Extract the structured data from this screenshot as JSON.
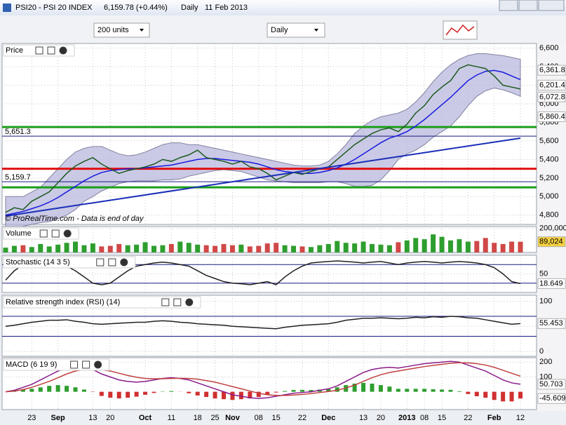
{
  "window": {
    "title": "PSI20 - PSI 20 INDEX",
    "quote": "6,159.78 (+0.44%)",
    "period": "Daily",
    "date": "11 Feb 2013"
  },
  "toolbar": {
    "units": "200 units",
    "timeframe": "Daily"
  },
  "chart_data": [
    {
      "type": "line",
      "title": "Price",
      "note": "© ProRealTime.com - Data is end of day",
      "xlim": [
        0,
        59
      ],
      "xticks": [
        {
          "value": 3,
          "label": "23"
        },
        {
          "value": 6,
          "label": "Sep"
        },
        {
          "value": 10,
          "label": "13"
        },
        {
          "value": 12,
          "label": "20"
        },
        {
          "value": 16,
          "label": "Oct"
        },
        {
          "value": 19,
          "label": "11"
        },
        {
          "value": 22,
          "label": "18"
        },
        {
          "value": 24,
          "label": "25"
        },
        {
          "value": 26,
          "label": "Nov"
        },
        {
          "value": 29,
          "label": "08"
        },
        {
          "value": 31,
          "label": "15"
        },
        {
          "value": 34,
          "label": "22"
        },
        {
          "value": 37,
          "label": "Dec"
        },
        {
          "value": 41,
          "label": "13"
        },
        {
          "value": 43,
          "label": "20"
        },
        {
          "value": 46,
          "label": "2013"
        },
        {
          "value": 48,
          "label": "08"
        },
        {
          "value": 50,
          "label": "15"
        },
        {
          "value": 53,
          "label": "22"
        },
        {
          "value": 56,
          "label": "Feb"
        },
        {
          "value": 59,
          "label": "12"
        }
      ],
      "ylim": [
        4700,
        6650
      ],
      "yticks": [
        {
          "value": 4800,
          "label": "4,800"
        },
        {
          "value": 5000,
          "label": "5,000"
        },
        {
          "value": 5200,
          "label": "5,200"
        },
        {
          "value": 5400,
          "label": "5,400"
        },
        {
          "value": 5600,
          "label": "5,600"
        },
        {
          "value": 5800,
          "label": "5,800"
        },
        {
          "value": 6000,
          "label": "6,000"
        },
        {
          "value": 6200,
          "label": "6,200"
        },
        {
          "value": 6400,
          "label": "6,400"
        },
        {
          "value": 6600,
          "label": "6,600"
        }
      ],
      "band": {
        "color": "#b4b4dc",
        "upper": [
          5000,
          5000,
          5000,
          5050,
          5100,
          5200,
          5300,
          5400,
          5480,
          5520,
          5540,
          5540,
          5500,
          5460,
          5440,
          5450,
          5480,
          5520,
          5560,
          5580,
          5580,
          5560,
          5560,
          5540,
          5520,
          5500,
          5480,
          5460,
          5440,
          5420,
          5400,
          5380,
          5360,
          5340,
          5330,
          5330,
          5340,
          5380,
          5460,
          5560,
          5680,
          5760,
          5820,
          5860,
          5880,
          5900,
          5940,
          6020,
          6120,
          6240,
          6340,
          6420,
          6480,
          6520,
          6540,
          6540,
          6530,
          6520,
          6500,
          6480
        ],
        "lower": [
          4650,
          4660,
          4680,
          4700,
          4720,
          4730,
          4760,
          4800,
          4860,
          4950,
          5000,
          5060,
          5100,
          5140,
          5160,
          5170,
          5170,
          5170,
          5180,
          5180,
          5190,
          5220,
          5240,
          5260,
          5280,
          5290,
          5280,
          5270,
          5240,
          5210,
          5180,
          5170,
          5160,
          5150,
          5150,
          5150,
          5150,
          5160,
          5160,
          5140,
          5110,
          5110,
          5120,
          5180,
          5280,
          5400,
          5460,
          5500,
          5560,
          5640,
          5700,
          5760,
          5860,
          5980,
          6080,
          6140,
          6170,
          6150,
          6120,
          6080
        ]
      },
      "series": [
        {
          "color": "#1a1ae0",
          "values": [
            4800,
            4820,
            4840,
            4870,
            4900,
            4940,
            4990,
            5050,
            5110,
            5170,
            5220,
            5260,
            5280,
            5290,
            5300,
            5300,
            5310,
            5320,
            5330,
            5340,
            5360,
            5380,
            5400,
            5410,
            5410,
            5400,
            5390,
            5380,
            5370,
            5350,
            5320,
            5290,
            5270,
            5260,
            5250,
            5250,
            5260,
            5280,
            5310,
            5350,
            5400,
            5460,
            5520,
            5580,
            5630,
            5660,
            5700,
            5760,
            5830,
            5910,
            5990,
            6070,
            6160,
            6250,
            6310,
            6350,
            6360,
            6340,
            6300,
            6260
          ]
        },
        {
          "color": "#1e5a1e",
          "values": [
            4830,
            4880,
            4860,
            4950,
            5000,
            5050,
            5150,
            5250,
            5330,
            5380,
            5420,
            5350,
            5300,
            5250,
            5280,
            5300,
            5320,
            5350,
            5400,
            5380,
            5420,
            5450,
            5500,
            5420,
            5400,
            5380,
            5350,
            5380,
            5320,
            5300,
            5250,
            5180,
            5220,
            5260,
            5240,
            5270,
            5300,
            5320,
            5400,
            5480,
            5560,
            5620,
            5680,
            5720,
            5740,
            5700,
            5780,
            5900,
            5980,
            6100,
            6180,
            6250,
            6380,
            6420,
            6400,
            6380,
            6300,
            6200,
            6180,
            6160
          ]
        }
      ],
      "trend_line": {
        "color": "#1a2eb8",
        "x": [
          0,
          59
        ],
        "y": [
          4790,
          5630
        ]
      },
      "support_lines": [
        {
          "value": 5300,
          "color": "#e01010"
        },
        {
          "value": 5750,
          "color": "#1a9e1a"
        },
        {
          "value": 5100,
          "color": "#1a9e1a"
        }
      ],
      "levels": [
        {
          "value": 5651.3,
          "label": "5,651.3",
          "color": "#1a1a80"
        },
        {
          "value": 5159.7,
          "label": "5,159.7",
          "color": "#1a1a80"
        }
      ],
      "tags": [
        {
          "value": 6361.8,
          "label": "6,361.8",
          "color": "#c02020",
          "bg": "#ffffff"
        },
        {
          "value": 6201.4,
          "label": "6,201.4",
          "color": "#6b4a10",
          "bg": "#ffffff"
        },
        {
          "value": 6072.8,
          "label": "6,072.8",
          "color": "#202020",
          "bg": "#ffffff"
        },
        {
          "value": 5860.4,
          "label": "5,860.4",
          "color": "#20c020",
          "bg": "#ffffff"
        }
      ]
    },
    {
      "type": "bar",
      "title": "Volume",
      "ylim": [
        0,
        215000
      ],
      "yticks": [
        {
          "value": 200000,
          "label": "200,000"
        }
      ],
      "series": [
        {
          "color": "#2e9e2e",
          "values": [
            40000,
            55000,
            60000,
            45000,
            70000,
            50000,
            65000,
            80000,
            90000,
            60000,
            75000,
            50000,
            55000,
            70000,
            60000,
            65000,
            85000,
            55000,
            60000,
            70000,
            90000,
            80000,
            65000,
            60000,
            55000,
            70000,
            60000,
            65000,
            50000,
            55000,
            75000,
            80000,
            60000,
            55000,
            50000,
            45000,
            60000,
            70000,
            95000,
            80000,
            75000,
            90000,
            70000,
            65000,
            60000,
            85000,
            100000,
            120000,
            110000,
            150000,
            130000,
            100000,
            110000,
            90000,
            95000,
            120000,
            80000,
            70000,
            90000,
            89024
          ]
        }
      ],
      "tags": [
        {
          "value": 89024,
          "label": "89,024",
          "color": "#000000",
          "bg": "#f5d040"
        }
      ]
    },
    {
      "type": "line",
      "title": "Stochastic (14 3 5)",
      "ylim": [
        -10,
        110
      ],
      "yticks": [
        50
      ],
      "guides": [
        80,
        20
      ],
      "series": [
        {
          "color": "#202020",
          "values": [
            30,
            60,
            80,
            85,
            88,
            85,
            80,
            75,
            60,
            40,
            20,
            15,
            20,
            40,
            60,
            75,
            80,
            85,
            88,
            85,
            80,
            75,
            60,
            45,
            35,
            25,
            20,
            18,
            15,
            20,
            25,
            15,
            40,
            60,
            75,
            85,
            88,
            90,
            92,
            90,
            88,
            85,
            88,
            90,
            85,
            80,
            85,
            88,
            90,
            88,
            85,
            88,
            90,
            88,
            85,
            80,
            70,
            50,
            25,
            18.649
          ]
        }
      ],
      "tags": [
        {
          "value": 18.649,
          "color": "#000000",
          "bg": "#ffffff"
        }
      ]
    },
    {
      "type": "line",
      "title": "Relative strength index (RSI) (14)",
      "ylim": [
        -10,
        112
      ],
      "yticks": [
        0,
        50,
        100
      ],
      "guides": [
        70,
        30
      ],
      "series": [
        {
          "color": "#202020",
          "values": [
            50,
            52,
            55,
            58,
            60,
            62,
            62,
            63,
            60,
            58,
            55,
            54,
            55,
            56,
            57,
            58,
            58,
            60,
            61,
            60,
            58,
            57,
            55,
            54,
            53,
            52,
            50,
            49,
            48,
            47,
            46,
            45,
            48,
            50,
            52,
            53,
            54,
            55,
            58,
            62,
            64,
            66,
            66,
            67,
            66,
            65,
            66,
            68,
            67,
            69,
            68,
            70,
            69,
            67,
            66,
            63,
            60,
            57,
            54,
            55.453
          ]
        }
      ],
      "tags": [
        {
          "value": 55.453,
          "color": "#000000",
          "bg": "#ffffff"
        }
      ]
    },
    {
      "type": "line",
      "title": "MACD (6 19 9)",
      "ylim": [
        -120,
        230
      ],
      "yticks": [
        100,
        200
      ],
      "histogram": {
        "up": "#2e9e2e",
        "down": "#d03030",
        "values": [
          0,
          5,
          15,
          20,
          30,
          40,
          45,
          40,
          30,
          15,
          -2,
          -28,
          -40,
          -45,
          -40,
          -33,
          -20,
          -8,
          2,
          5,
          -1,
          -10,
          -25,
          -35,
          -45,
          -50,
          -55,
          -50,
          -45,
          -35,
          -20,
          -5,
          5,
          12,
          13,
          12,
          15,
          18,
          30,
          45,
          55,
          60,
          55,
          45,
          35,
          20,
          20,
          20,
          20,
          17,
          15,
          13,
          4,
          -15,
          -30,
          -40,
          -55,
          -65,
          -65,
          -45.609
        ]
      },
      "series": [
        {
          "color": "#8a1a8a",
          "values": [
            0,
            10,
            30,
            50,
            80,
            110,
            140,
            160,
            170,
            165,
            150,
            120,
            100,
            80,
            70,
            65,
            70,
            80,
            90,
            95,
            90,
            80,
            60,
            40,
            20,
            0,
            -20,
            -30,
            -40,
            -45,
            -40,
            -30,
            -20,
            -10,
            -5,
            0,
            10,
            20,
            40,
            70,
            100,
            130,
            150,
            160,
            165,
            160,
            170,
            180,
            190,
            195,
            200,
            205,
            200,
            180,
            160,
            140,
            110,
            80,
            60,
            50.703
          ]
        },
        {
          "color": "#c04040",
          "values": [
            0,
            5,
            15,
            30,
            50,
            70,
            95,
            120,
            140,
            150,
            152,
            148,
            140,
            125,
            110,
            98,
            90,
            88,
            88,
            90,
            91,
            90,
            85,
            75,
            65,
            50,
            35,
            20,
            5,
            -10,
            -20,
            -25,
            -25,
            -22,
            -18,
            -12,
            -5,
            2,
            10,
            25,
            45,
            70,
            95,
            115,
            130,
            140,
            150,
            160,
            170,
            178,
            185,
            192,
            196,
            195,
            190,
            180,
            165,
            145,
            125,
            105
          ]
        }
      ],
      "tags": [
        {
          "value": 50.703,
          "color": "#c02020",
          "bg": "#ffffff"
        },
        {
          "value": -45.609,
          "color": "#c02020",
          "bg": "#ffffff"
        }
      ]
    }
  ]
}
